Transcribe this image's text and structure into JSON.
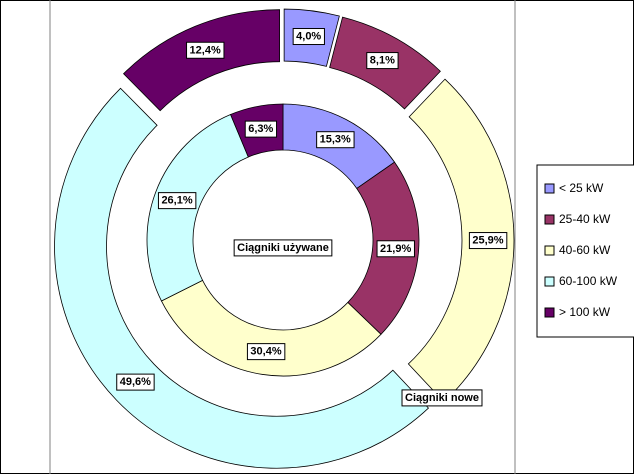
{
  "chart_data": {
    "type": "doughnut",
    "categories": [
      "< 25 kW",
      "25-40 kW",
      "40-60 kW",
      "60-100 kW",
      "> 100 kW"
    ],
    "colors": [
      "#9999ff",
      "#993366",
      "#ffffcc",
      "#ccffff",
      "#660066"
    ],
    "series": [
      {
        "name": "Ciągniki używane",
        "values": [
          15.3,
          21.9,
          30.4,
          26.1,
          6.3
        ],
        "value_labels": [
          "15,3%",
          "21,9%",
          "30,4%",
          "26,1%",
          "6,3%"
        ]
      },
      {
        "name": "Ciągniki nowe",
        "values": [
          4.0,
          8.1,
          25.9,
          49.6,
          12.4
        ],
        "value_labels": [
          "4,0%",
          "8,1%",
          "25,9%",
          "49,6%",
          "12,4%"
        ],
        "exploded": true
      }
    ],
    "legend": "right"
  }
}
